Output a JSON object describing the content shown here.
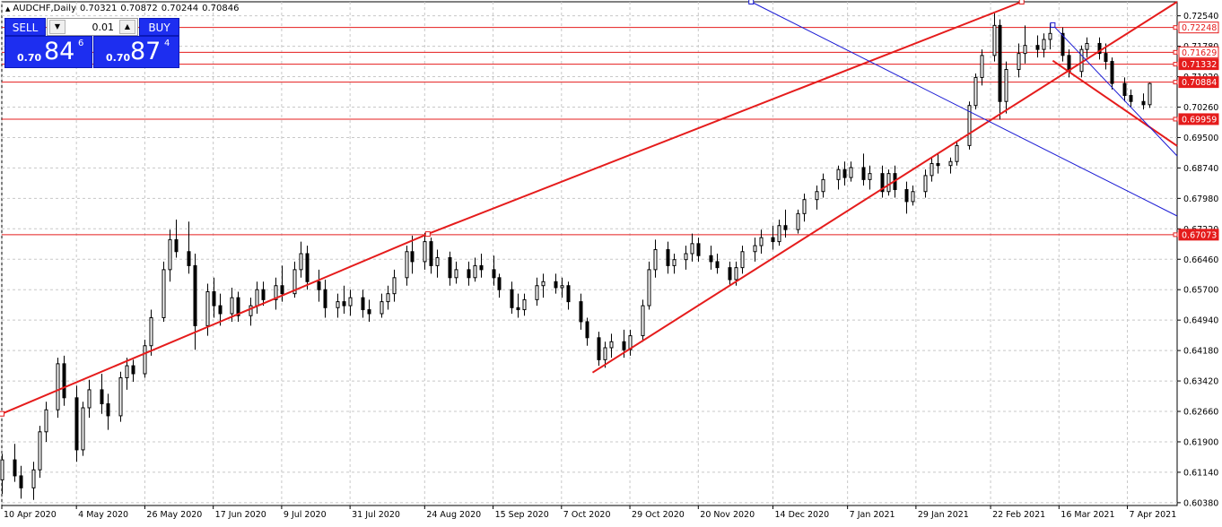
{
  "header": {
    "symbol_timeframe": "AUDCHF,Daily",
    "open": "0.70321",
    "high": "0.70872",
    "low": "0.70244",
    "close": "0.70846"
  },
  "trade_panel": {
    "sell_label": "SELL",
    "buy_label": "BUY",
    "lot_value": "0.01",
    "bid": {
      "prefix": "0.70",
      "big": "84",
      "small": "6"
    },
    "ask": {
      "prefix": "0.70",
      "big": "87",
      "small": "4"
    }
  },
  "colors": {
    "bull": "#000000",
    "bear": "#000000",
    "hline": "#e51c1c",
    "trend": "#e51c1c",
    "channel": "#1b1bd4",
    "grid": "#c8c8c8",
    "label_bg": "#e51c1c",
    "panel_blue": "#1d2ef0"
  },
  "chart_data": {
    "type": "candlestick",
    "title": "AUDCHF,Daily",
    "ylim": [
      0.6031,
      0.7289
    ],
    "x_range_days": [
      "2020-04-10",
      "2021-04-23"
    ],
    "y_ticks": [
      "0.72540",
      "0.71780",
      "0.71020",
      "0.70260",
      "0.69500",
      "0.68740",
      "0.67980",
      "0.67220",
      "0.66460",
      "0.65700",
      "0.64940",
      "0.64180",
      "0.63420",
      "0.62660",
      "0.61900",
      "0.61140",
      "0.60380"
    ],
    "x_ticks": [
      {
        "date": "2020-04-10",
        "label": "10 Apr 2020"
      },
      {
        "date": "2020-05-04",
        "label": "4 May 2020"
      },
      {
        "date": "2020-05-26",
        "label": "26 May 2020"
      },
      {
        "date": "2020-06-17",
        "label": "17 Jun 2020"
      },
      {
        "date": "2020-07-09",
        "label": "9 Jul 2020"
      },
      {
        "date": "2020-07-31",
        "label": "31 Jul 2020"
      },
      {
        "date": "2020-08-24",
        "label": "24 Aug 2020"
      },
      {
        "date": "2020-09-15",
        "label": "15 Sep 2020"
      },
      {
        "date": "2020-10-07",
        "label": "7 Oct 2020"
      },
      {
        "date": "2020-10-29",
        "label": "29 Oct 2020"
      },
      {
        "date": "2020-11-20",
        "label": "20 Nov 2020"
      },
      {
        "date": "2020-12-14",
        "label": "14 Dec 2020"
      },
      {
        "date": "2021-01-07",
        "label": "7 Jan 2021"
      },
      {
        "date": "2021-01-29",
        "label": "29 Jan 2021"
      },
      {
        "date": "2021-02-22",
        "label": "22 Feb 2021"
      },
      {
        "date": "2021-03-16",
        "label": "16 Mar 2021"
      },
      {
        "date": "2021-04-07",
        "label": "7 Apr 2021"
      }
    ],
    "horizontal_lines": [
      {
        "value": 0.72248,
        "label": "0.72248",
        "label_style": "outline"
      },
      {
        "value": 0.71629,
        "label": "0.71629",
        "label_style": "outline"
      },
      {
        "value": 0.71332,
        "label": "0.71332",
        "label_style": "filled"
      },
      {
        "value": 0.70884,
        "label": "0.70884",
        "label_style": "filled"
      },
      {
        "value": 0.69959,
        "label": "0.69959",
        "label_style": "filled"
      },
      {
        "value": 0.67073,
        "label": "0.67073",
        "label_style": "filled"
      }
    ],
    "trend_lines": [
      {
        "name": "upper-channel",
        "color": "trend",
        "width": 2,
        "points": [
          [
            "2020-04-10",
            0.626
          ],
          [
            "2020-08-25",
            0.6709
          ],
          [
            "2021-03-04",
            0.7289
          ]
        ]
      },
      {
        "name": "lower-channel",
        "color": "trend",
        "width": 2,
        "points": [
          [
            "2020-10-17",
            0.6363
          ],
          [
            "2021-04-23",
            0.7289
          ]
        ]
      },
      {
        "name": "short-trend",
        "color": "trend",
        "width": 2,
        "points": [
          [
            "2021-03-14",
            0.7142
          ],
          [
            "2021-04-23",
            0.6929
          ]
        ]
      },
      {
        "name": "regression-upper",
        "color": "channel",
        "width": 1,
        "points": [
          [
            "2021-03-14",
            0.7231
          ],
          [
            "2021-04-23",
            0.6904
          ]
        ]
      },
      {
        "name": "regression-lower",
        "color": "channel",
        "width": 1,
        "points": [
          [
            "2020-12-07",
            0.7289
          ],
          [
            "2021-04-23",
            0.6754
          ]
        ]
      }
    ],
    "ohlc_columns": [
      "date",
      "open",
      "high",
      "low",
      "close"
    ],
    "ohlc": [
      [
        "2020-04-10",
        0.6095,
        0.616,
        0.606,
        0.6145
      ],
      [
        "2020-04-14",
        0.6145,
        0.6185,
        0.609,
        0.6105
      ],
      [
        "2020-04-16",
        0.6105,
        0.613,
        0.6048,
        0.6075
      ],
      [
        "2020-04-20",
        0.6075,
        0.614,
        0.6045,
        0.612
      ],
      [
        "2020-04-22",
        0.612,
        0.623,
        0.61,
        0.6215
      ],
      [
        "2020-04-24",
        0.6215,
        0.629,
        0.619,
        0.627
      ],
      [
        "2020-04-28",
        0.627,
        0.64,
        0.625,
        0.6385
      ],
      [
        "2020-04-30",
        0.6385,
        0.6405,
        0.628,
        0.63
      ],
      [
        "2020-05-04",
        0.63,
        0.633,
        0.614,
        0.617
      ],
      [
        "2020-05-06",
        0.617,
        0.629,
        0.6155,
        0.6275
      ],
      [
        "2020-05-08",
        0.6275,
        0.6345,
        0.625,
        0.632
      ],
      [
        "2020-05-12",
        0.632,
        0.636,
        0.626,
        0.6285
      ],
      [
        "2020-05-14",
        0.6285,
        0.631,
        0.622,
        0.6255
      ],
      [
        "2020-05-18",
        0.6255,
        0.6365,
        0.624,
        0.635
      ],
      [
        "2020-05-20",
        0.635,
        0.64,
        0.632,
        0.638
      ],
      [
        "2020-05-22",
        0.638,
        0.6395,
        0.634,
        0.636
      ],
      [
        "2020-05-26",
        0.636,
        0.6445,
        0.635,
        0.643
      ],
      [
        "2020-05-28",
        0.643,
        0.652,
        0.6405,
        0.65
      ],
      [
        "2020-06-01",
        0.65,
        0.664,
        0.649,
        0.662
      ],
      [
        "2020-06-03",
        0.662,
        0.672,
        0.659,
        0.6695
      ],
      [
        "2020-06-05",
        0.6695,
        0.6745,
        0.665,
        0.6665
      ],
      [
        "2020-06-09",
        0.6665,
        0.674,
        0.661,
        0.663
      ],
      [
        "2020-06-11",
        0.663,
        0.666,
        0.642,
        0.648
      ],
      [
        "2020-06-15",
        0.648,
        0.6585,
        0.6455,
        0.6565
      ],
      [
        "2020-06-17",
        0.6565,
        0.66,
        0.65,
        0.653
      ],
      [
        "2020-06-19",
        0.653,
        0.656,
        0.648,
        0.651
      ],
      [
        "2020-06-23",
        0.651,
        0.6575,
        0.649,
        0.655
      ],
      [
        "2020-06-25",
        0.655,
        0.6565,
        0.649,
        0.6505
      ],
      [
        "2020-06-29",
        0.6505,
        0.655,
        0.648,
        0.653
      ],
      [
        "2020-07-01",
        0.653,
        0.659,
        0.651,
        0.657
      ],
      [
        "2020-07-03",
        0.657,
        0.659,
        0.653,
        0.6545
      ],
      [
        "2020-07-07",
        0.6545,
        0.66,
        0.652,
        0.658
      ],
      [
        "2020-07-09",
        0.658,
        0.663,
        0.654,
        0.656
      ],
      [
        "2020-07-13",
        0.656,
        0.664,
        0.655,
        0.662
      ],
      [
        "2020-07-15",
        0.662,
        0.669,
        0.66,
        0.666
      ],
      [
        "2020-07-17",
        0.666,
        0.668,
        0.657,
        0.659
      ],
      [
        "2020-07-21",
        0.659,
        0.662,
        0.654,
        0.657
      ],
      [
        "2020-07-23",
        0.657,
        0.6595,
        0.65,
        0.6525
      ],
      [
        "2020-07-27",
        0.6525,
        0.656,
        0.65,
        0.654
      ],
      [
        "2020-07-29",
        0.654,
        0.658,
        0.651,
        0.653
      ],
      [
        "2020-07-31",
        0.653,
        0.657,
        0.6505,
        0.655
      ],
      [
        "2020-08-04",
        0.655,
        0.657,
        0.65,
        0.652
      ],
      [
        "2020-08-06",
        0.652,
        0.6545,
        0.649,
        0.651
      ],
      [
        "2020-08-10",
        0.651,
        0.656,
        0.65,
        0.654
      ],
      [
        "2020-08-12",
        0.654,
        0.658,
        0.652,
        0.656
      ],
      [
        "2020-08-14",
        0.656,
        0.662,
        0.654,
        0.66
      ],
      [
        "2020-08-18",
        0.66,
        0.668,
        0.658,
        0.6665
      ],
      [
        "2020-08-20",
        0.6665,
        0.6705,
        0.661,
        0.664
      ],
      [
        "2020-08-24",
        0.664,
        0.6712,
        0.662,
        0.669
      ],
      [
        "2020-08-26",
        0.669,
        0.67,
        0.661,
        0.663
      ],
      [
        "2020-08-28",
        0.663,
        0.667,
        0.66,
        0.665
      ],
      [
        "2020-09-01",
        0.665,
        0.6665,
        0.658,
        0.66
      ],
      [
        "2020-09-03",
        0.66,
        0.664,
        0.6585,
        0.662
      ],
      [
        "2020-09-07",
        0.662,
        0.664,
        0.658,
        0.66
      ],
      [
        "2020-09-09",
        0.66,
        0.665,
        0.659,
        0.663
      ],
      [
        "2020-09-11",
        0.663,
        0.666,
        0.66,
        0.662
      ],
      [
        "2020-09-15",
        0.662,
        0.6655,
        0.658,
        0.66
      ],
      [
        "2020-09-17",
        0.66,
        0.661,
        0.655,
        0.657
      ],
      [
        "2020-09-21",
        0.657,
        0.659,
        0.651,
        0.6525
      ],
      [
        "2020-09-23",
        0.6525,
        0.656,
        0.65,
        0.652
      ],
      [
        "2020-09-25",
        0.652,
        0.656,
        0.6505,
        0.6545
      ],
      [
        "2020-09-29",
        0.6545,
        0.66,
        0.653,
        0.658
      ],
      [
        "2020-10-01",
        0.658,
        0.661,
        0.655,
        0.659
      ],
      [
        "2020-10-05",
        0.659,
        0.661,
        0.656,
        0.6575
      ],
      [
        "2020-10-07",
        0.6575,
        0.66,
        0.655,
        0.658
      ],
      [
        "2020-10-09",
        0.658,
        0.659,
        0.652,
        0.654
      ],
      [
        "2020-10-13",
        0.654,
        0.656,
        0.647,
        0.649
      ],
      [
        "2020-10-15",
        0.649,
        0.65,
        0.643,
        0.645
      ],
      [
        "2020-10-19",
        0.645,
        0.6465,
        0.638,
        0.6395
      ],
      [
        "2020-10-21",
        0.6395,
        0.644,
        0.6375,
        0.6425
      ],
      [
        "2020-10-23",
        0.6425,
        0.646,
        0.64,
        0.644
      ],
      [
        "2020-10-27",
        0.644,
        0.647,
        0.64,
        0.642
      ],
      [
        "2020-10-29",
        0.642,
        0.647,
        0.6405,
        0.6455
      ],
      [
        "2020-11-02",
        0.6455,
        0.6545,
        0.644,
        0.653
      ],
      [
        "2020-11-04",
        0.653,
        0.664,
        0.652,
        0.662
      ],
      [
        "2020-11-06",
        0.662,
        0.6695,
        0.66,
        0.667
      ],
      [
        "2020-11-10",
        0.667,
        0.669,
        0.661,
        0.663
      ],
      [
        "2020-11-12",
        0.663,
        0.666,
        0.661,
        0.6645
      ],
      [
        "2020-11-16",
        0.6645,
        0.668,
        0.662,
        0.666
      ],
      [
        "2020-11-18",
        0.666,
        0.671,
        0.664,
        0.6685
      ],
      [
        "2020-11-20",
        0.6685,
        0.67,
        0.664,
        0.6655
      ],
      [
        "2020-11-24",
        0.6655,
        0.668,
        0.662,
        0.664
      ],
      [
        "2020-11-26",
        0.664,
        0.666,
        0.661,
        0.6625
      ],
      [
        "2020-11-30",
        0.6625,
        0.664,
        0.658,
        0.6595
      ],
      [
        "2020-12-02",
        0.6595,
        0.664,
        0.658,
        0.6625
      ],
      [
        "2020-12-04",
        0.6625,
        0.668,
        0.661,
        0.6665
      ],
      [
        "2020-12-08",
        0.6665,
        0.67,
        0.664,
        0.668
      ],
      [
        "2020-12-10",
        0.668,
        0.672,
        0.666,
        0.67
      ],
      [
        "2020-12-14",
        0.67,
        0.673,
        0.667,
        0.669
      ],
      [
        "2020-12-16",
        0.669,
        0.6745,
        0.668,
        0.673
      ],
      [
        "2020-12-18",
        0.673,
        0.677,
        0.67,
        0.672
      ],
      [
        "2020-12-22",
        0.672,
        0.677,
        0.671,
        0.676
      ],
      [
        "2020-12-24",
        0.676,
        0.681,
        0.674,
        0.6795
      ],
      [
        "2020-12-28",
        0.6795,
        0.683,
        0.677,
        0.6815
      ],
      [
        "2020-12-30",
        0.6815,
        0.686,
        0.68,
        0.6845
      ],
      [
        "2021-01-04",
        0.6845,
        0.688,
        0.682,
        0.687
      ],
      [
        "2021-01-06",
        0.687,
        0.689,
        0.683,
        0.685
      ],
      [
        "2021-01-08",
        0.685,
        0.689,
        0.684,
        0.6875
      ],
      [
        "2021-01-12",
        0.6875,
        0.691,
        0.683,
        0.6845
      ],
      [
        "2021-01-14",
        0.6845,
        0.688,
        0.682,
        0.686
      ],
      [
        "2021-01-18",
        0.686,
        0.688,
        0.68,
        0.6815
      ],
      [
        "2021-01-20",
        0.6815,
        0.687,
        0.6805,
        0.686
      ],
      [
        "2021-01-22",
        0.686,
        0.688,
        0.68,
        0.682
      ],
      [
        "2021-01-26",
        0.682,
        0.684,
        0.676,
        0.679
      ],
      [
        "2021-01-28",
        0.679,
        0.683,
        0.678,
        0.6815
      ],
      [
        "2021-02-01",
        0.6815,
        0.687,
        0.68,
        0.6855
      ],
      [
        "2021-02-03",
        0.6855,
        0.69,
        0.684,
        0.6885
      ],
      [
        "2021-02-05",
        0.6885,
        0.691,
        0.686,
        0.688
      ],
      [
        "2021-02-09",
        0.688,
        0.69,
        0.686,
        0.689
      ],
      [
        "2021-02-11",
        0.689,
        0.694,
        0.688,
        0.693
      ],
      [
        "2021-02-15",
        0.693,
        0.704,
        0.692,
        0.703
      ],
      [
        "2021-02-17",
        0.703,
        0.711,
        0.702,
        0.71
      ],
      [
        "2021-02-19",
        0.71,
        0.717,
        0.708,
        0.7155
      ],
      [
        "2021-02-23",
        0.7155,
        0.726,
        0.714,
        0.723
      ],
      [
        "2021-02-25",
        0.723,
        0.7245,
        0.6995,
        0.704
      ],
      [
        "2021-02-27",
        0.704,
        0.714,
        0.701,
        0.712
      ],
      [
        "2021-03-03",
        0.712,
        0.7185,
        0.71,
        0.716
      ],
      [
        "2021-03-05",
        0.716,
        0.723,
        0.7135,
        0.718
      ],
      [
        "2021-03-09",
        0.718,
        0.7205,
        0.715,
        0.717
      ],
      [
        "2021-03-11",
        0.717,
        0.721,
        0.715,
        0.7195
      ],
      [
        "2021-03-13",
        0.7195,
        0.7235,
        0.717,
        0.721
      ],
      [
        "2021-03-17",
        0.721,
        0.7225,
        0.714,
        0.7155
      ],
      [
        "2021-03-19",
        0.7155,
        0.717,
        0.71,
        0.7115
      ],
      [
        "2021-03-23",
        0.7115,
        0.718,
        0.71,
        0.717
      ],
      [
        "2021-03-25",
        0.717,
        0.72,
        0.715,
        0.7185
      ],
      [
        "2021-03-29",
        0.7185,
        0.72,
        0.7145,
        0.716
      ],
      [
        "2021-03-31",
        0.716,
        0.7185,
        0.712,
        0.714
      ],
      [
        "2021-04-02",
        0.714,
        0.715,
        0.707,
        0.7085
      ],
      [
        "2021-04-06",
        0.7085,
        0.71,
        0.704,
        0.7055
      ],
      [
        "2021-04-08",
        0.7055,
        0.707,
        0.7025,
        0.704
      ],
      [
        "2021-04-12",
        0.704,
        0.706,
        0.702,
        0.7032
      ],
      [
        "2021-04-14",
        0.7032,
        0.7087,
        0.7024,
        0.7085
      ]
    ]
  }
}
